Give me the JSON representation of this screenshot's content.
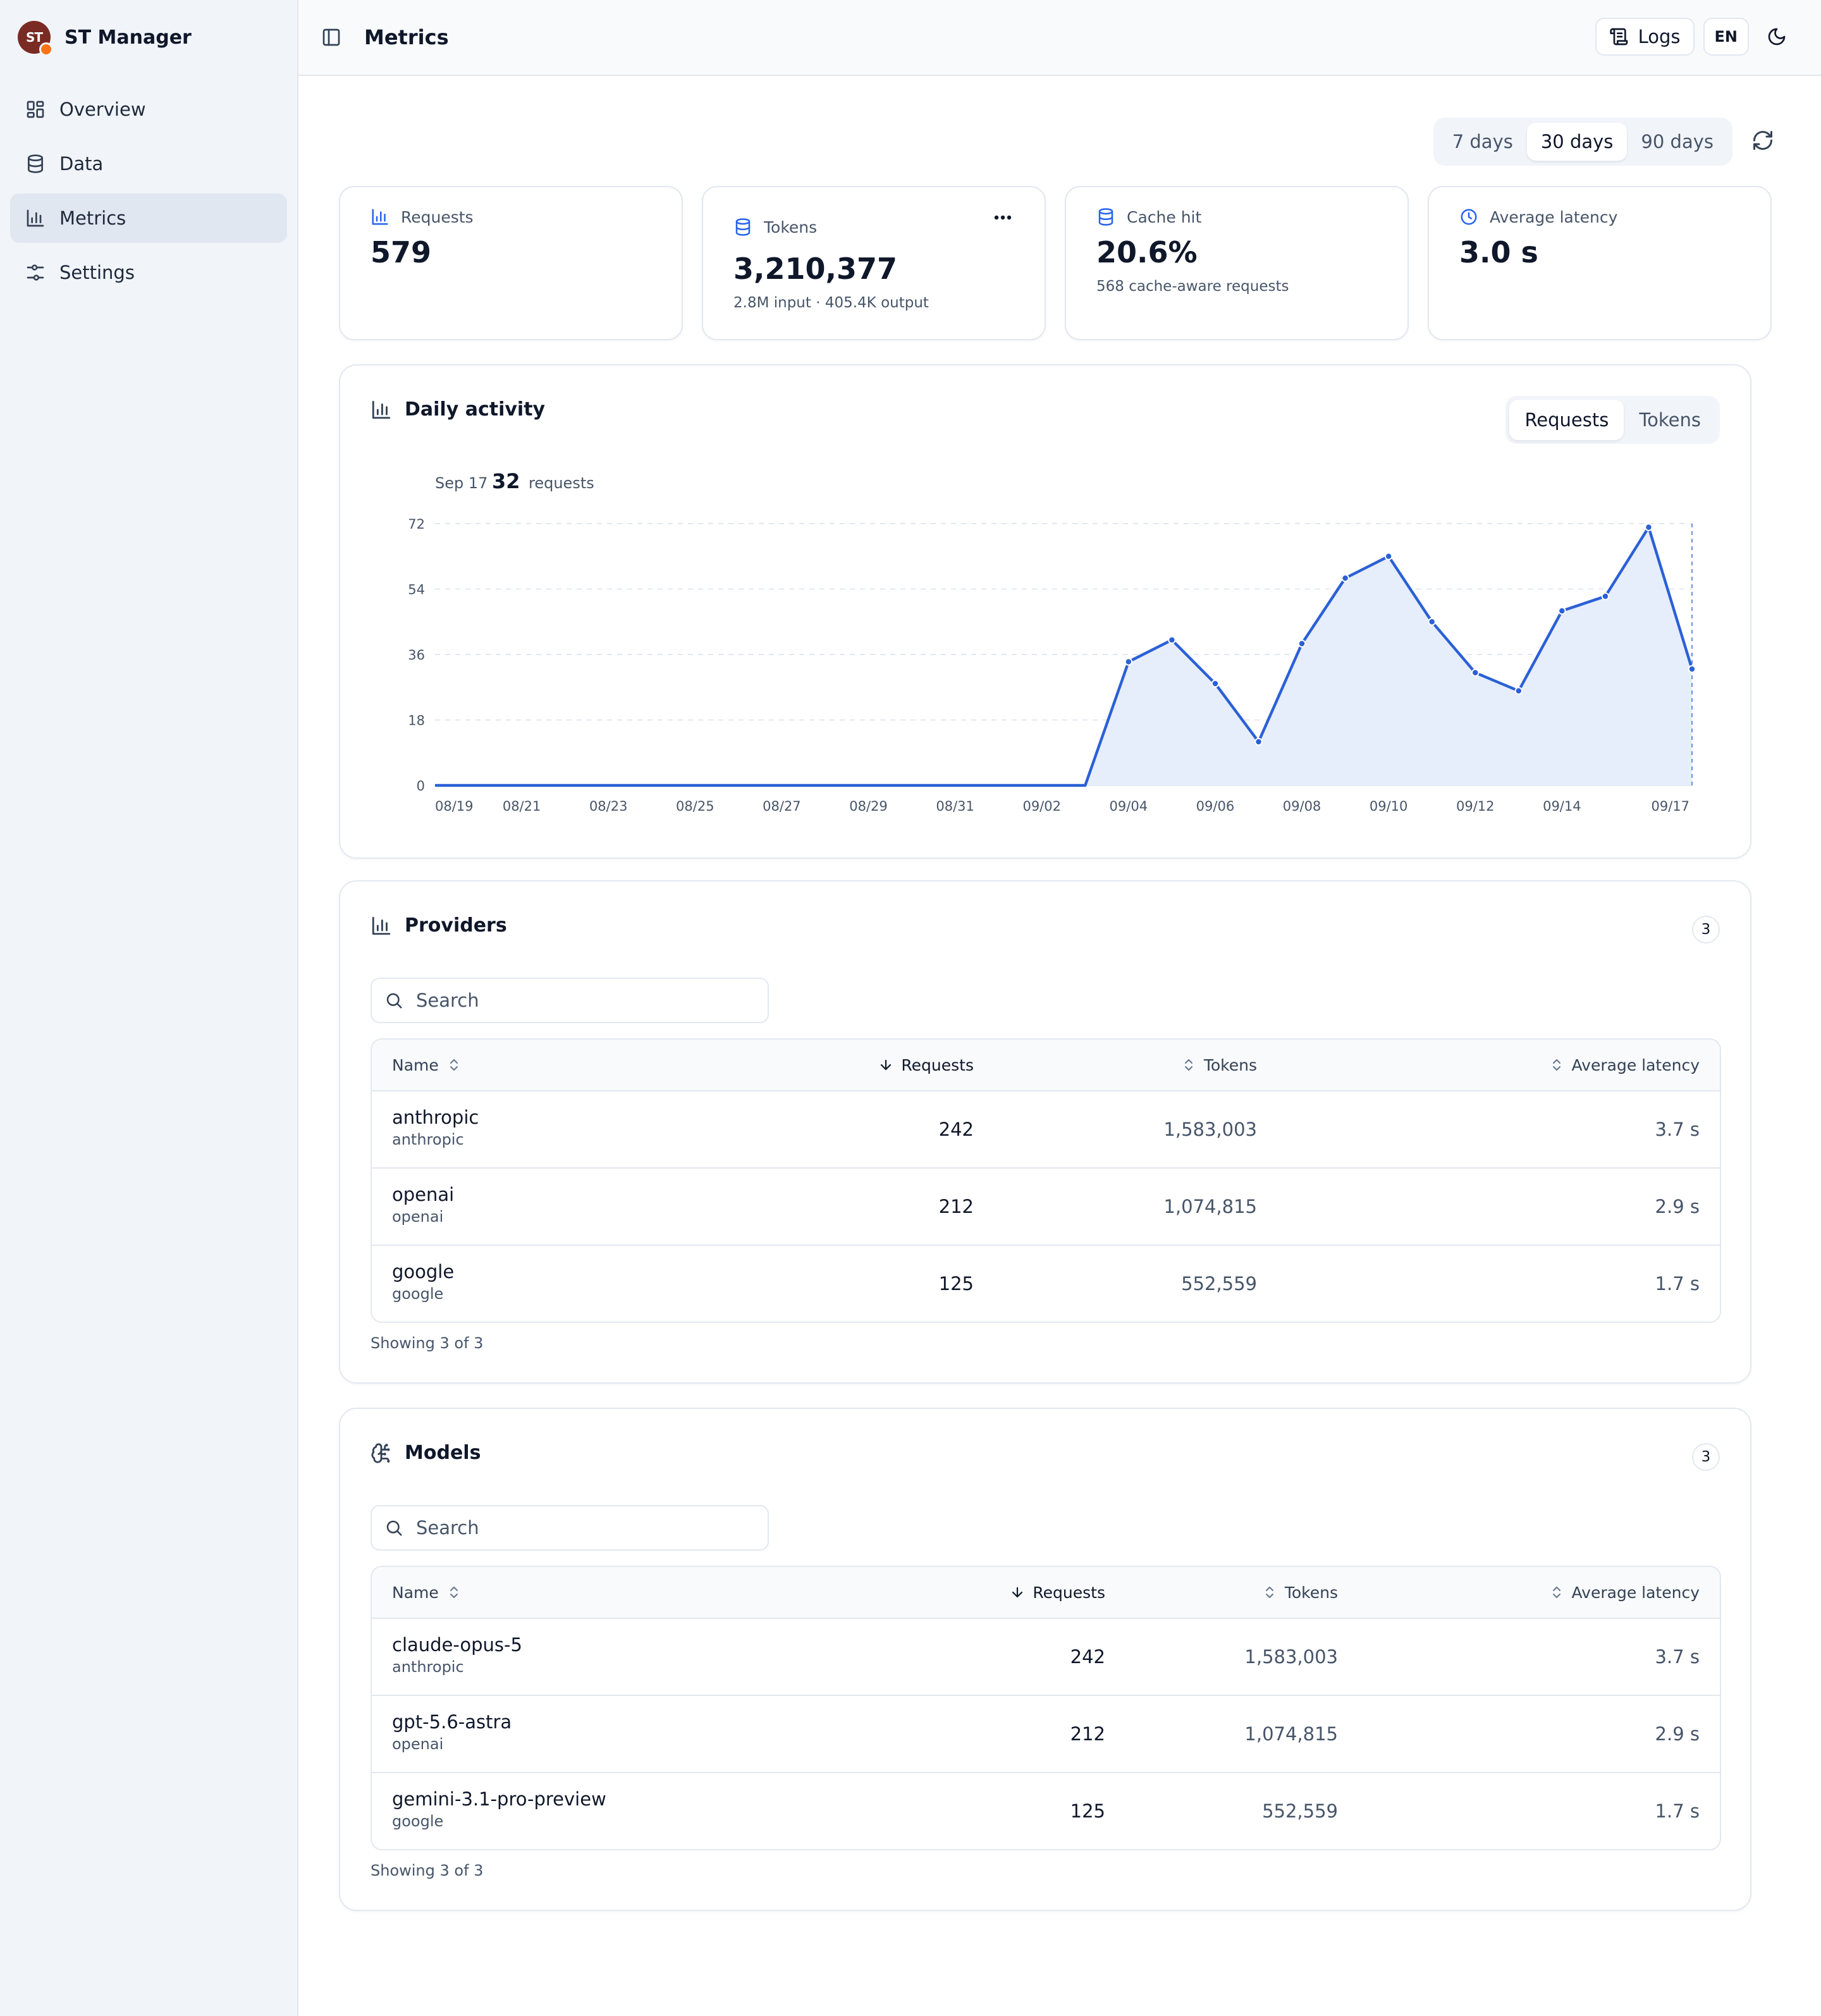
{
  "brand": {
    "name": "ST Manager",
    "logo_text": "ST"
  },
  "sidebar": {
    "items": [
      {
        "label": "Overview",
        "icon": "layout-dashboard-icon"
      },
      {
        "label": "Data",
        "icon": "database-icon"
      },
      {
        "label": "Metrics",
        "icon": "bar-chart-icon",
        "active": true
      },
      {
        "label": "Settings",
        "icon": "sliders-icon"
      }
    ]
  },
  "header": {
    "title": "Metrics",
    "logs_label": "Logs",
    "lang_label": "EN"
  },
  "range": {
    "options": [
      "7 days",
      "30 days",
      "90 days"
    ],
    "selected": "30 days"
  },
  "cards": {
    "requests": {
      "label": "Requests",
      "value": "579"
    },
    "tokens": {
      "label": "Tokens",
      "value": "3,210,377",
      "sub": "2.8M input · 405.4K output"
    },
    "cache": {
      "label": "Cache hit",
      "value": "20.6%",
      "sub": "568 cache-aware requests"
    },
    "latency": {
      "label": "Average latency",
      "value": "3.0 s"
    }
  },
  "activity": {
    "title": "Daily activity",
    "toggle": [
      "Requests",
      "Tokens"
    ],
    "selected": "Requests",
    "tooltip": {
      "date": "Sep 17",
      "value": "32",
      "unit": "requests"
    }
  },
  "chart_data": {
    "type": "area",
    "x": [
      "08/19",
      "08/20",
      "08/21",
      "08/22",
      "08/23",
      "08/24",
      "08/25",
      "08/26",
      "08/27",
      "08/28",
      "08/29",
      "08/30",
      "08/31",
      "09/01",
      "09/02",
      "09/03",
      "09/04",
      "09/05",
      "09/06",
      "09/07",
      "09/08",
      "09/09",
      "09/10",
      "09/11",
      "09/12",
      "09/13",
      "09/14",
      "09/15",
      "09/16",
      "09/17"
    ],
    "values": [
      0,
      0,
      0,
      0,
      0,
      0,
      0,
      0,
      0,
      0,
      0,
      0,
      0,
      0,
      0,
      0,
      34,
      40,
      28,
      12,
      39,
      57,
      63,
      45,
      31,
      26,
      48,
      52,
      71,
      32
    ],
    "x_tick_labels": [
      "08/19",
      "08/21",
      "08/23",
      "08/25",
      "08/27",
      "08/29",
      "08/31",
      "09/02",
      "09/04",
      "09/06",
      "09/08",
      "09/10",
      "09/12",
      "09/14",
      "09/17"
    ],
    "y_ticks": [
      0,
      18,
      36,
      54,
      72
    ],
    "ylim": [
      0,
      72
    ],
    "grid": true,
    "highlight_index": 29,
    "colors": {
      "line": "#2b60d6",
      "fill": "#e3ecfc",
      "grid": "#e2e8f0"
    }
  },
  "providers": {
    "title": "Providers",
    "count": "3",
    "search_placeholder": "Search",
    "columns": {
      "name": "Name",
      "requests": "Requests",
      "tokens": "Tokens",
      "latency": "Average latency"
    },
    "rows": [
      {
        "name": "anthropic",
        "sub": "anthropic",
        "requests": "242",
        "tokens": "1,583,003",
        "latency": "3.7 s"
      },
      {
        "name": "openai",
        "sub": "openai",
        "requests": "212",
        "tokens": "1,074,815",
        "latency": "2.9 s"
      },
      {
        "name": "google",
        "sub": "google",
        "requests": "125",
        "tokens": "552,559",
        "latency": "1.7 s"
      }
    ],
    "showing": "Showing 3 of 3"
  },
  "models": {
    "title": "Models",
    "count": "3",
    "search_placeholder": "Search",
    "columns": {
      "name": "Name",
      "requests": "Requests",
      "tokens": "Tokens",
      "latency": "Average latency"
    },
    "rows": [
      {
        "name": "claude-opus-5",
        "sub": "anthropic",
        "requests": "242",
        "tokens": "1,583,003",
        "latency": "3.7 s"
      },
      {
        "name": "gpt-5.6-astra",
        "sub": "openai",
        "requests": "212",
        "tokens": "1,074,815",
        "latency": "2.9 s"
      },
      {
        "name": "gemini-3.1-pro-preview",
        "sub": "google",
        "requests": "125",
        "tokens": "552,559",
        "latency": "1.7 s"
      }
    ],
    "showing": "Showing 3 of 3"
  }
}
